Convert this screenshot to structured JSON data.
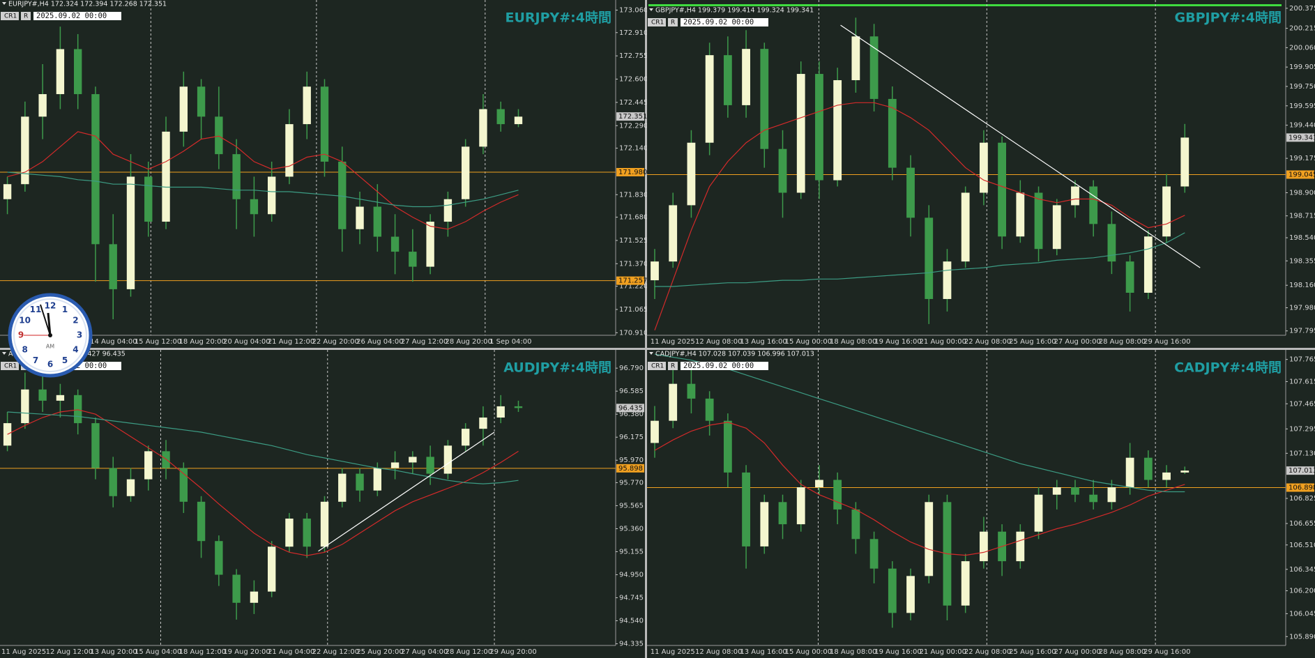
{
  "chart_data": [
    {
      "type": "candlestick",
      "title": "EURJPY#:4時間",
      "header": "EURJPY#,H4  172.324 172.394 172.268 172.351",
      "date_label": "2025.09.02 00:00",
      "buttons": [
        "CR1",
        "R"
      ],
      "up_color": "#f4f6cf",
      "down_color": "#3d9a4b",
      "wick_color": "#3d9a4b",
      "ylim": [
        170.893,
        173.118
      ],
      "yticks": [
        {
          "value": 173.06,
          "label": "173.060"
        },
        {
          "value": 172.91,
          "label": "172.910"
        },
        172.755,
        {
          "value": 172.6,
          "label": "172.600"
        },
        172.445,
        {
          "value": 172.29,
          "label": "172.290"
        },
        {
          "value": 172.14,
          "label": "172.140"
        },
        {
          "value": 171.83,
          "label": "171.830"
        },
        {
          "value": 171.68,
          "label": "171.680"
        },
        171.525,
        {
          "value": 171.37,
          "label": "171.370"
        },
        {
          "value": 171.22,
          "label": "171.220"
        },
        171.065,
        {
          "value": 170.91,
          "label": "170.910"
        }
      ],
      "xtick_labels": [
        "14 Aug 04:00",
        "15 Aug 12:00",
        "18 Aug 20:00",
        "20 Aug 04:00",
        "21 Aug 12:00",
        "22 Aug 20:00",
        "26 Aug 04:00",
        "27 Aug 12:00",
        "28 Aug 20:00",
        "1 Sep 04:00"
      ],
      "open": [
        171.8,
        171.9,
        172.35,
        172.5,
        172.8,
        172.5,
        171.5,
        171.2,
        171.95,
        171.65,
        172.25,
        172.55,
        172.35,
        172.1,
        171.8,
        171.7,
        171.95,
        172.3,
        172.55,
        172.05,
        171.6,
        171.75,
        171.55,
        171.45,
        171.35,
        171.65,
        171.8,
        172.15,
        172.4,
        172.3
      ],
      "high": [
        171.95,
        172.45,
        172.7,
        172.95,
        172.9,
        172.55,
        171.7,
        172.1,
        172.05,
        172.35,
        172.65,
        172.6,
        172.55,
        172.2,
        171.95,
        172.05,
        172.4,
        172.65,
        172.6,
        172.15,
        171.85,
        171.9,
        171.7,
        171.6,
        171.7,
        171.85,
        172.2,
        172.5,
        172.45,
        172.4
      ],
      "low": [
        171.7,
        171.85,
        172.2,
        172.4,
        172.4,
        171.25,
        171.0,
        171.15,
        171.55,
        171.6,
        172.15,
        172.2,
        172.0,
        171.6,
        171.55,
        171.65,
        171.9,
        172.2,
        171.95,
        171.45,
        171.5,
        171.45,
        171.3,
        171.25,
        171.3,
        171.55,
        171.75,
        172.1,
        172.25,
        172.28
      ],
      "close": [
        171.9,
        172.35,
        172.5,
        172.8,
        172.5,
        171.5,
        171.2,
        171.95,
        171.65,
        172.25,
        172.55,
        172.35,
        172.1,
        171.8,
        171.7,
        171.95,
        172.3,
        172.55,
        172.05,
        171.6,
        171.75,
        171.55,
        171.45,
        171.35,
        171.65,
        171.8,
        172.15,
        172.4,
        172.3,
        172.35
      ],
      "series": [
        {
          "color": "#d42a2a",
          "values": [
            171.95,
            171.98,
            172.05,
            172.15,
            172.25,
            172.22,
            172.1,
            172.05,
            172.0,
            172.05,
            172.12,
            172.2,
            172.22,
            172.15,
            172.05,
            172.0,
            172.02,
            172.08,
            172.1,
            172.05,
            171.95,
            171.85,
            171.75,
            171.68,
            171.62,
            171.6,
            171.65,
            171.72,
            171.78,
            171.83
          ]
        },
        {
          "color": "#3c9c84",
          "values": [
            171.98,
            171.97,
            171.96,
            171.95,
            171.93,
            171.92,
            171.9,
            171.9,
            171.89,
            171.88,
            171.88,
            171.88,
            171.87,
            171.86,
            171.86,
            171.85,
            171.85,
            171.84,
            171.83,
            171.82,
            171.8,
            171.78,
            171.76,
            171.75,
            171.75,
            171.76,
            171.78,
            171.8,
            171.83,
            171.86
          ]
        }
      ],
      "levels": [
        {
          "value": 171.98,
          "label": "171.980"
        },
        171.257
      ],
      "last_price": 172.351
    },
    {
      "type": "candlestick",
      "title": "GBPJPY#:4時間",
      "header": "GBPJPY#,H4  199.379 199.414 199.324 199.341",
      "date_label": "2025.09.02 00:00",
      "buttons": [
        "CR1",
        "R"
      ],
      "up_color": "#f4f6cf",
      "down_color": "#3d9a4b",
      "wick_color": "#3d9a4b",
      "ylim": [
        197.76,
        200.43
      ],
      "yticks": [
        200.375,
        200.215,
        {
          "value": 200.06,
          "label": "200.060"
        },
        199.905,
        {
          "value": 199.75,
          "label": "199.750"
        },
        199.595,
        {
          "value": 199.44,
          "label": "199.440"
        },
        199.175,
        {
          "value": 198.9,
          "label": "198.900"
        },
        198.715,
        {
          "value": 198.54,
          "label": "198.540"
        },
        198.355,
        {
          "value": 198.16,
          "label": "198.160"
        },
        {
          "value": 197.98,
          "label": "197.980"
        },
        197.795
      ],
      "xtick_labels": [
        "11 Aug 2025",
        "12 Aug 08:00",
        "13 Aug 16:00",
        "15 Aug 00:00",
        "18 Aug 08:00",
        "19 Aug 16:00",
        "21 Aug 00:00",
        "22 Aug 08:00",
        "25 Aug 16:00",
        "27 Aug 00:00",
        "28 Aug 08:00",
        "29 Aug 16:00"
      ],
      "open": [
        198.2,
        198.35,
        198.8,
        199.3,
        200.0,
        199.6,
        200.05,
        199.25,
        198.9,
        199.85,
        199.0,
        199.8,
        200.15,
        199.65,
        199.1,
        198.7,
        198.05,
        198.35,
        198.9,
        199.3,
        198.55,
        198.9,
        198.45,
        198.8,
        198.95,
        198.65,
        198.35,
        198.1,
        198.55,
        198.95
      ],
      "high": [
        198.45,
        198.9,
        199.4,
        200.1,
        200.15,
        200.2,
        200.1,
        199.4,
        199.95,
        199.95,
        199.9,
        200.3,
        200.25,
        199.75,
        199.2,
        198.8,
        198.45,
        198.95,
        199.4,
        199.35,
        199.0,
        198.95,
        198.85,
        199.0,
        199.0,
        198.75,
        198.4,
        198.6,
        199.05,
        199.45
      ],
      "low": [
        198.05,
        198.3,
        198.7,
        199.2,
        199.5,
        199.5,
        199.1,
        198.7,
        198.85,
        198.85,
        198.95,
        199.7,
        199.55,
        199.0,
        198.55,
        197.85,
        197.95,
        198.3,
        198.8,
        198.45,
        198.5,
        198.35,
        198.4,
        198.7,
        198.55,
        198.25,
        197.95,
        198.05,
        198.5,
        198.9
      ],
      "close": [
        198.35,
        198.8,
        199.3,
        200.0,
        199.6,
        200.05,
        199.25,
        198.9,
        199.85,
        199.0,
        199.8,
        200.15,
        199.65,
        199.1,
        198.7,
        198.05,
        198.35,
        198.9,
        199.3,
        198.55,
        198.9,
        198.45,
        198.8,
        198.95,
        198.65,
        198.35,
        198.1,
        198.55,
        198.95,
        199.341
      ],
      "series": [
        {
          "color": "#d42a2a",
          "values": [
            197.8,
            198.2,
            198.6,
            198.95,
            199.15,
            199.3,
            199.4,
            199.45,
            199.5,
            199.55,
            199.6,
            199.62,
            199.62,
            199.58,
            199.5,
            199.4,
            199.25,
            199.1,
            199.0,
            198.95,
            198.9,
            198.85,
            198.82,
            198.85,
            198.85,
            198.8,
            198.7,
            198.62,
            198.65,
            198.72
          ]
        },
        {
          "color": "#3c9c84",
          "values": [
            198.15,
            198.15,
            198.16,
            198.17,
            198.18,
            198.18,
            198.19,
            198.2,
            198.2,
            198.21,
            198.21,
            198.22,
            198.23,
            198.24,
            198.25,
            198.26,
            198.28,
            198.29,
            198.3,
            198.32,
            198.33,
            198.34,
            198.36,
            198.37,
            198.38,
            198.4,
            198.42,
            198.45,
            198.5,
            198.58
          ]
        }
      ],
      "levels": [
        199.045
      ],
      "last_price": 199.341,
      "trendline": {
        "start": 200.24,
        "end": 198.3,
        "color": "#ffffff"
      }
    },
    {
      "type": "candlestick",
      "title": "AUDJPY#:4時間",
      "header": "AUDJPY#,H4  96.381 96.427 96.435",
      "date_label": "2025.09.02 00:00",
      "buttons": [
        "CR1",
        "R"
      ],
      "up_color": "#f4f6cf",
      "down_color": "#3d9a4b",
      "wick_color": "#3d9a4b",
      "ylim": [
        94.32,
        96.94
      ],
      "yticks": [
        {
          "value": 96.79,
          "label": "96.790"
        },
        96.585,
        {
          "value": 96.38,
          "label": "96.380"
        },
        96.175,
        {
          "value": 95.97,
          "label": "95.970"
        },
        {
          "value": 95.77,
          "label": "95.770"
        },
        95.565,
        {
          "value": 95.36,
          "label": "95.360"
        },
        95.155,
        {
          "value": 94.95,
          "label": "94.950"
        },
        94.745,
        {
          "value": 94.54,
          "label": "94.540"
        },
        94.335
      ],
      "xtick_labels": [
        "11 Aug 2025",
        "12 Aug 12:00",
        "13 Aug 20:00",
        "15 Aug 04:00",
        "18 Aug 12:00",
        "19 Aug 20:00",
        "21 Aug 04:00",
        "22 Aug 12:00",
        "25 Aug 20:00",
        "27 Aug 04:00",
        "28 Aug 12:00",
        "29 Aug 20:00"
      ],
      "open": [
        96.1,
        96.3,
        96.6,
        96.5,
        96.55,
        96.3,
        95.9,
        95.65,
        95.8,
        96.05,
        95.9,
        95.6,
        95.25,
        94.95,
        94.7,
        94.8,
        95.2,
        95.45,
        95.2,
        95.6,
        95.85,
        95.7,
        95.9,
        95.95,
        96.0,
        95.85,
        96.1,
        96.25,
        96.35,
        96.45
      ],
      "high": [
        96.4,
        96.75,
        96.8,
        96.65,
        96.6,
        96.35,
        96.0,
        95.9,
        96.1,
        96.15,
        95.95,
        95.65,
        95.3,
        95.0,
        94.9,
        95.25,
        95.5,
        95.5,
        95.65,
        95.9,
        95.9,
        95.95,
        96.05,
        96.05,
        96.1,
        96.15,
        96.3,
        96.45,
        96.55,
        96.5
      ],
      "low": [
        96.05,
        96.25,
        96.4,
        96.35,
        96.2,
        95.8,
        95.55,
        95.6,
        95.7,
        95.8,
        95.5,
        95.1,
        94.85,
        94.55,
        94.6,
        94.75,
        95.15,
        95.1,
        95.15,
        95.55,
        95.6,
        95.65,
        95.8,
        95.85,
        95.75,
        95.8,
        96.05,
        96.1,
        96.3,
        96.4
      ],
      "close": [
        96.3,
        96.6,
        96.5,
        96.55,
        96.3,
        95.9,
        95.65,
        95.8,
        96.05,
        95.9,
        95.6,
        95.25,
        94.95,
        94.7,
        94.8,
        95.2,
        95.45,
        95.2,
        95.6,
        95.85,
        95.7,
        95.9,
        95.95,
        96.0,
        95.85,
        96.1,
        96.25,
        96.35,
        96.45,
        96.435
      ],
      "series": [
        {
          "color": "#d42a2a",
          "values": [
            96.2,
            96.28,
            96.35,
            96.4,
            96.42,
            96.38,
            96.28,
            96.18,
            96.08,
            95.98,
            95.85,
            95.72,
            95.58,
            95.45,
            95.32,
            95.22,
            95.15,
            95.12,
            95.15,
            95.22,
            95.32,
            95.42,
            95.52,
            95.6,
            95.66,
            95.72,
            95.78,
            95.86,
            95.95,
            96.05
          ]
        },
        {
          "color": "#3c9c84",
          "values": [
            96.4,
            96.39,
            96.38,
            96.37,
            96.36,
            96.34,
            96.32,
            96.3,
            96.28,
            96.26,
            96.24,
            96.22,
            96.19,
            96.16,
            96.13,
            96.1,
            96.06,
            96.02,
            95.99,
            95.96,
            95.93,
            95.9,
            95.88,
            95.85,
            95.82,
            95.79,
            95.77,
            95.76,
            95.77,
            95.79
          ]
        }
      ],
      "levels": [
        95.898
      ],
      "last_price": 96.435,
      "trendline": {
        "start": 95.16,
        "end": 96.22,
        "color": "#ffffff"
      }
    },
    {
      "type": "candlestick",
      "title": "CADJPY#:4時間",
      "header": "CADJPY#,H4  107.028 107.039 106.996 107.013",
      "date_label": "2025.09.02 00:00",
      "buttons": [
        "CR1",
        "R"
      ],
      "up_color": "#f4f6cf",
      "down_color": "#3d9a4b",
      "wick_color": "#3d9a4b",
      "ylim": [
        105.83,
        107.82
      ],
      "yticks": [
        107.765,
        107.615,
        107.465,
        107.295,
        {
          "value": 107.13,
          "label": "107.130"
        },
        106.825,
        106.655,
        {
          "value": 106.51,
          "label": "106.510"
        },
        106.345,
        {
          "value": 106.2,
          "label": "106.200"
        },
        106.045,
        {
          "value": 105.89,
          "label": "105.890"
        }
      ],
      "xtick_labels": [
        "11 Aug 2025",
        "12 Aug 08:00",
        "13 Aug 16:00",
        "15 Aug 00:00",
        "18 Aug 08:00",
        "19 Aug 16:00",
        "21 Aug 00:00",
        "22 Aug 08:00",
        "25 Aug 16:00",
        "27 Aug 00:00",
        "28 Aug 08:00",
        "29 Aug 16:00"
      ],
      "open": [
        107.2,
        107.35,
        107.6,
        107.5,
        107.35,
        107.0,
        106.5,
        106.8,
        106.65,
        106.9,
        106.95,
        106.75,
        106.55,
        106.35,
        106.05,
        106.3,
        106.8,
        106.1,
        106.4,
        106.6,
        106.4,
        106.6,
        106.85,
        106.9,
        106.85,
        106.8,
        106.9,
        107.1,
        106.95,
        107.0
      ],
      "high": [
        107.45,
        107.7,
        107.75,
        107.55,
        107.4,
        107.05,
        106.85,
        106.85,
        106.95,
        107.05,
        107.0,
        106.8,
        106.6,
        106.4,
        106.35,
        106.85,
        106.85,
        106.45,
        106.7,
        106.65,
        106.65,
        106.9,
        106.95,
        106.95,
        106.95,
        106.95,
        107.2,
        107.15,
        107.05,
        107.04
      ],
      "low": [
        107.1,
        107.3,
        107.4,
        107.25,
        106.9,
        106.35,
        106.45,
        106.55,
        106.6,
        106.85,
        106.65,
        106.45,
        106.25,
        105.95,
        106.0,
        106.25,
        106.0,
        106.05,
        106.35,
        106.3,
        106.35,
        106.55,
        106.75,
        106.8,
        106.75,
        106.75,
        106.85,
        106.9,
        106.9,
        106.99
      ],
      "close": [
        107.35,
        107.6,
        107.5,
        107.35,
        107.0,
        106.5,
        106.8,
        106.65,
        106.9,
        106.95,
        106.75,
        106.55,
        106.35,
        106.05,
        106.3,
        106.8,
        106.1,
        106.4,
        106.6,
        106.4,
        106.6,
        106.85,
        106.9,
        106.85,
        106.8,
        106.9,
        107.1,
        106.95,
        107.0,
        107.013
      ],
      "series": [
        {
          "color": "#d42a2a",
          "values": [
            107.15,
            107.22,
            107.28,
            107.32,
            107.34,
            107.3,
            107.2,
            107.05,
            106.92,
            106.85,
            106.8,
            106.75,
            106.68,
            106.6,
            106.53,
            106.48,
            106.45,
            106.44,
            106.46,
            106.5,
            106.54,
            106.58,
            106.62,
            106.65,
            106.69,
            106.73,
            106.78,
            106.84,
            106.88,
            106.92
          ]
        },
        {
          "color": "#3c9c84",
          "values": [
            107.8,
            107.78,
            107.76,
            107.73,
            107.7,
            107.66,
            107.62,
            107.58,
            107.54,
            107.5,
            107.46,
            107.42,
            107.38,
            107.34,
            107.3,
            107.26,
            107.22,
            107.18,
            107.14,
            107.1,
            107.06,
            107.03,
            107.0,
            106.97,
            106.94,
            106.92,
            106.9,
            106.88,
            106.87,
            106.87
          ]
        }
      ],
      "levels": [
        106.898
      ],
      "last_price": 107.013
    }
  ],
  "clock": {
    "numbers": [
      1,
      2,
      3,
      4,
      5,
      6,
      7,
      8,
      9,
      10,
      11,
      12
    ],
    "label": "AM"
  }
}
